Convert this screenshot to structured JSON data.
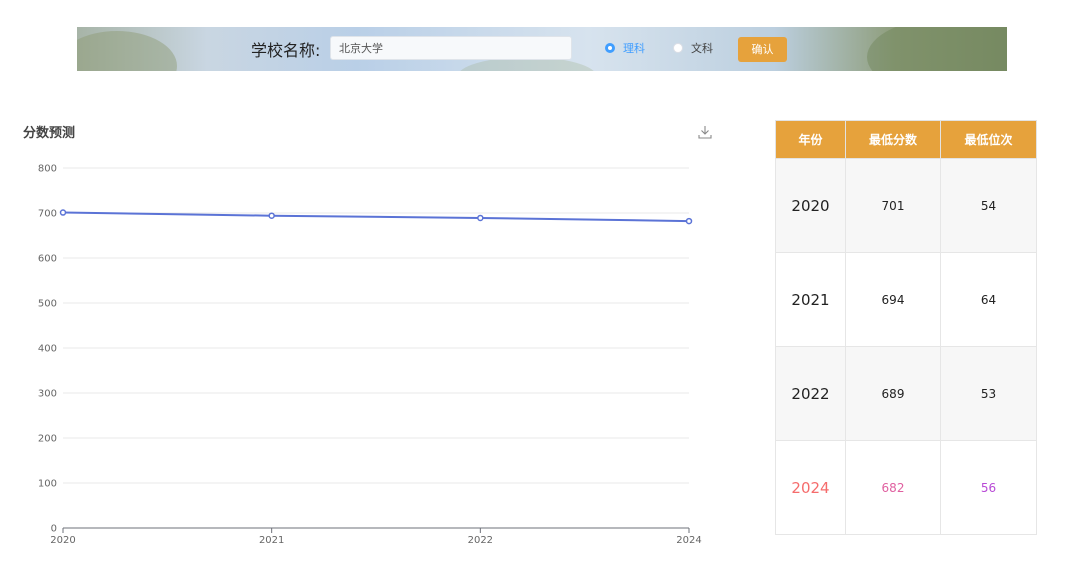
{
  "search": {
    "label": "学校名称:",
    "value": "北京大学",
    "radio_science": "理科",
    "radio_arts": "文科",
    "selected": "理科",
    "confirm_label": "确认"
  },
  "chart_title": "分数预测",
  "chart_data": {
    "type": "line",
    "x": [
      "2020",
      "2021",
      "2022",
      "2024"
    ],
    "series": [
      {
        "values": [
          701,
          694,
          689,
          682
        ],
        "color": "#5b73d6"
      }
    ],
    "ylim": [
      0,
      800
    ],
    "yticks": [
      "0",
      "100",
      "200",
      "300",
      "400",
      "500",
      "600",
      "700",
      "800"
    ],
    "grid": true
  },
  "table": {
    "headers": [
      "年份",
      "最低分数",
      "最低位次"
    ],
    "rows": [
      {
        "year": "2020",
        "score": "701",
        "rank": "54"
      },
      {
        "year": "2021",
        "score": "694",
        "rank": "64"
      },
      {
        "year": "2022",
        "score": "689",
        "rank": "53"
      },
      {
        "year": "2024",
        "score": "682",
        "rank": "56"
      }
    ]
  },
  "colors": {
    "accent": "#e6a23c",
    "radio_selected": "#409eff",
    "line": "#5b73d6",
    "prediction_year": "#f56c6c",
    "prediction_score": "#e060a0",
    "prediction_rank": "#b84ad6"
  }
}
